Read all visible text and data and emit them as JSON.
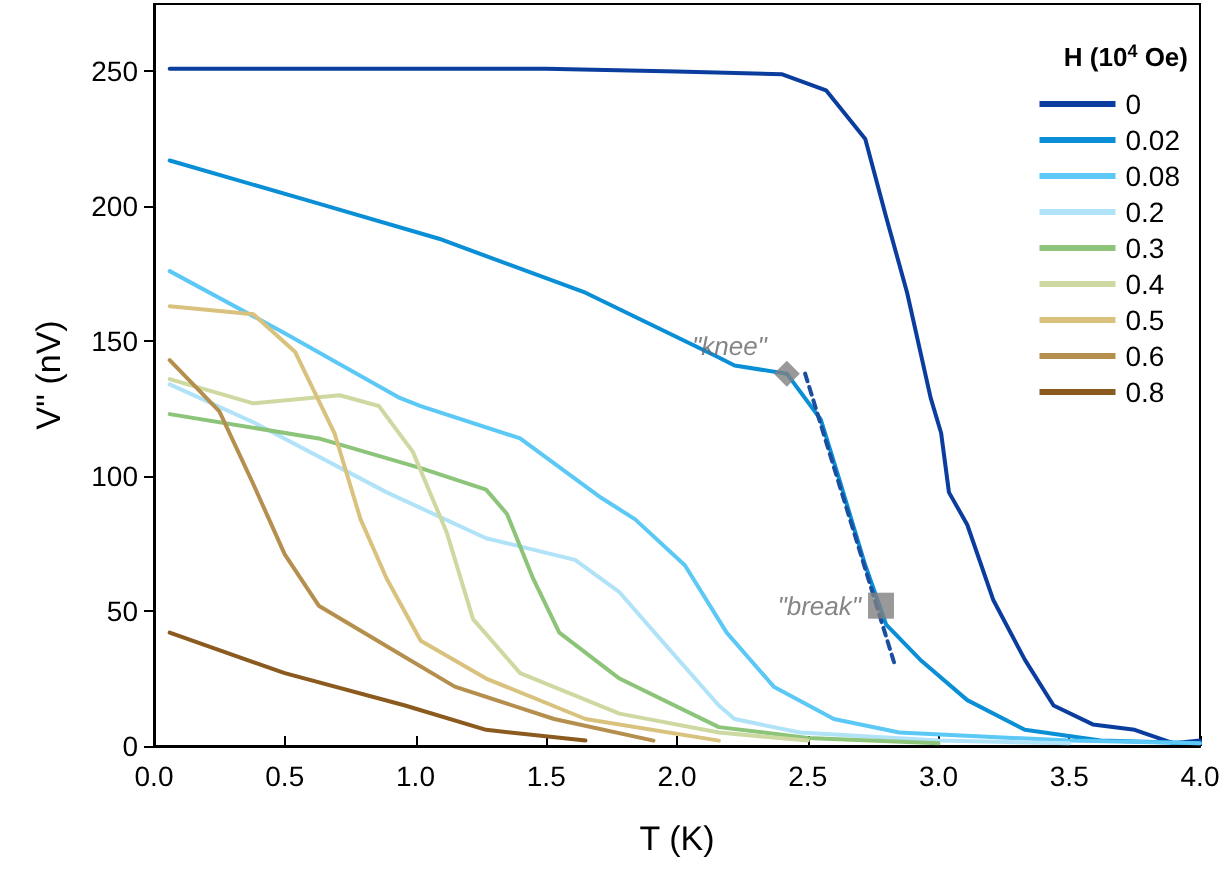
{
  "chart_data": {
    "type": "line",
    "xlabel": "T (K)",
    "ylabel": "V'' (nV)",
    "legend_title": "H (10$^{4}$ Oe)",
    "legend": "top right",
    "grid": false,
    "marker": "none",
    "line_style": "solid",
    "xlim": [
      0,
      4
    ],
    "xticks": [
      {
        "value": 0,
        "label": "0.0"
      },
      {
        "value": 0.5,
        "label": "0.5"
      },
      {
        "value": 1,
        "label": "1.0"
      },
      {
        "value": 1.5,
        "label": "1.5"
      },
      {
        "value": 2,
        "label": "2.0"
      },
      {
        "value": 2.5,
        "label": "2.5"
      },
      {
        "value": 3,
        "label": "3.0"
      },
      {
        "value": 3.5,
        "label": "3.5"
      },
      {
        "value": 4,
        "label": "4.0"
      }
    ],
    "ylim": [
      0,
      275
    ],
    "yticks": [
      0,
      50,
      100,
      150,
      200,
      250
    ],
    "annotations": [
      {
        "text": "\"knee\"",
        "x": 2.42,
        "y": 138
      },
      {
        "text": "\"break\"",
        "x": 2.78,
        "y": 52
      }
    ],
    "series": [
      {
        "name": "0",
        "color": "#0a3d9e",
        "x": [
          0.06,
          0.5,
          1.0,
          1.5,
          2.0,
          2.4,
          2.57,
          2.72,
          2.8,
          2.88,
          2.97,
          3.01,
          3.04,
          3.11,
          3.21,
          3.33,
          3.44,
          3.59,
          3.75,
          3.9,
          4.0
        ],
        "values": [
          251,
          251,
          251,
          251,
          250,
          249,
          243,
          225,
          196,
          168,
          129,
          116,
          94,
          82,
          54,
          32,
          15,
          8,
          6,
          1,
          2
        ]
      },
      {
        "name": "0.02",
        "color": "#0a8fd6",
        "x": [
          0.06,
          0.63,
          1.09,
          1.65,
          2.16,
          2.22,
          2.42,
          2.55,
          2.62,
          2.72,
          2.8,
          2.93,
          3.11,
          3.33,
          3.62,
          4.0
        ],
        "values": [
          217,
          201,
          188,
          168,
          144,
          141,
          138,
          121,
          99,
          67,
          45,
          32,
          17,
          6,
          2,
          1
        ]
      },
      {
        "name": "0.08",
        "color": "#5bc8f5",
        "x": [
          0.06,
          0.5,
          0.94,
          1.02,
          1.4,
          1.71,
          1.84,
          2.03,
          2.19,
          2.37,
          2.6,
          2.85,
          3.5,
          4.0
        ],
        "values": [
          176,
          153,
          129,
          126,
          114,
          92,
          84,
          67,
          42,
          22,
          10,
          5,
          2,
          1
        ]
      },
      {
        "name": "0.2",
        "color": "#b0e2f8",
        "x": [
          0.06,
          0.38,
          0.89,
          1.27,
          1.61,
          1.78,
          1.96,
          2.16,
          2.22,
          2.47,
          3.0,
          3.5
        ],
        "values": [
          134,
          120,
          94,
          77,
          69,
          57,
          37,
          15,
          10,
          5,
          2,
          1
        ]
      },
      {
        "name": "0.3",
        "color": "#8cc47a",
        "x": [
          0.06,
          0.63,
          1.02,
          1.27,
          1.35,
          1.45,
          1.55,
          1.78,
          2.16,
          2.5,
          3.0
        ],
        "values": [
          123,
          114,
          103,
          95,
          86,
          62,
          42,
          25,
          7,
          3,
          1
        ]
      },
      {
        "name": "0.4",
        "color": "#cdd9a0",
        "x": [
          0.06,
          0.38,
          0.71,
          0.86,
          0.99,
          1.12,
          1.22,
          1.4,
          1.78,
          2.16,
          2.5
        ],
        "values": [
          136,
          127,
          130,
          126,
          109,
          79,
          47,
          27,
          12,
          5,
          2
        ]
      },
      {
        "name": "0.5",
        "color": "#d9c27e",
        "x": [
          0.06,
          0.38,
          0.54,
          0.69,
          0.79,
          0.89,
          1.02,
          1.27,
          1.65,
          2.16
        ],
        "values": [
          163,
          160,
          146,
          116,
          84,
          62,
          39,
          25,
          10,
          2
        ]
      },
      {
        "name": "0.6",
        "color": "#b58f4e",
        "x": [
          0.06,
          0.25,
          0.38,
          0.5,
          0.63,
          0.89,
          1.15,
          1.53,
          1.91
        ],
        "values": [
          143,
          124,
          97,
          71,
          52,
          37,
          22,
          10,
          2
        ]
      },
      {
        "name": "0.8",
        "color": "#8b5a1e",
        "x": [
          0.06,
          0.5,
          0.96,
          1.27,
          1.65
        ],
        "values": [
          42,
          27,
          15,
          6,
          2
        ]
      },
      {
        "type": "line",
        "color": "#1a4fa0",
        "line_style": "dashed",
        "x": [
          2.49,
          2.83
        ],
        "values": [
          138,
          31
        ]
      },
      {
        "type": "scatter",
        "color": "#808080",
        "marker": "diamond",
        "x": [
          2.42
        ],
        "values": [
          138
        ]
      },
      {
        "type": "scatter",
        "color": "#808080",
        "marker": "square",
        "x": [
          2.78
        ],
        "values": [
          52
        ]
      }
    ]
  }
}
